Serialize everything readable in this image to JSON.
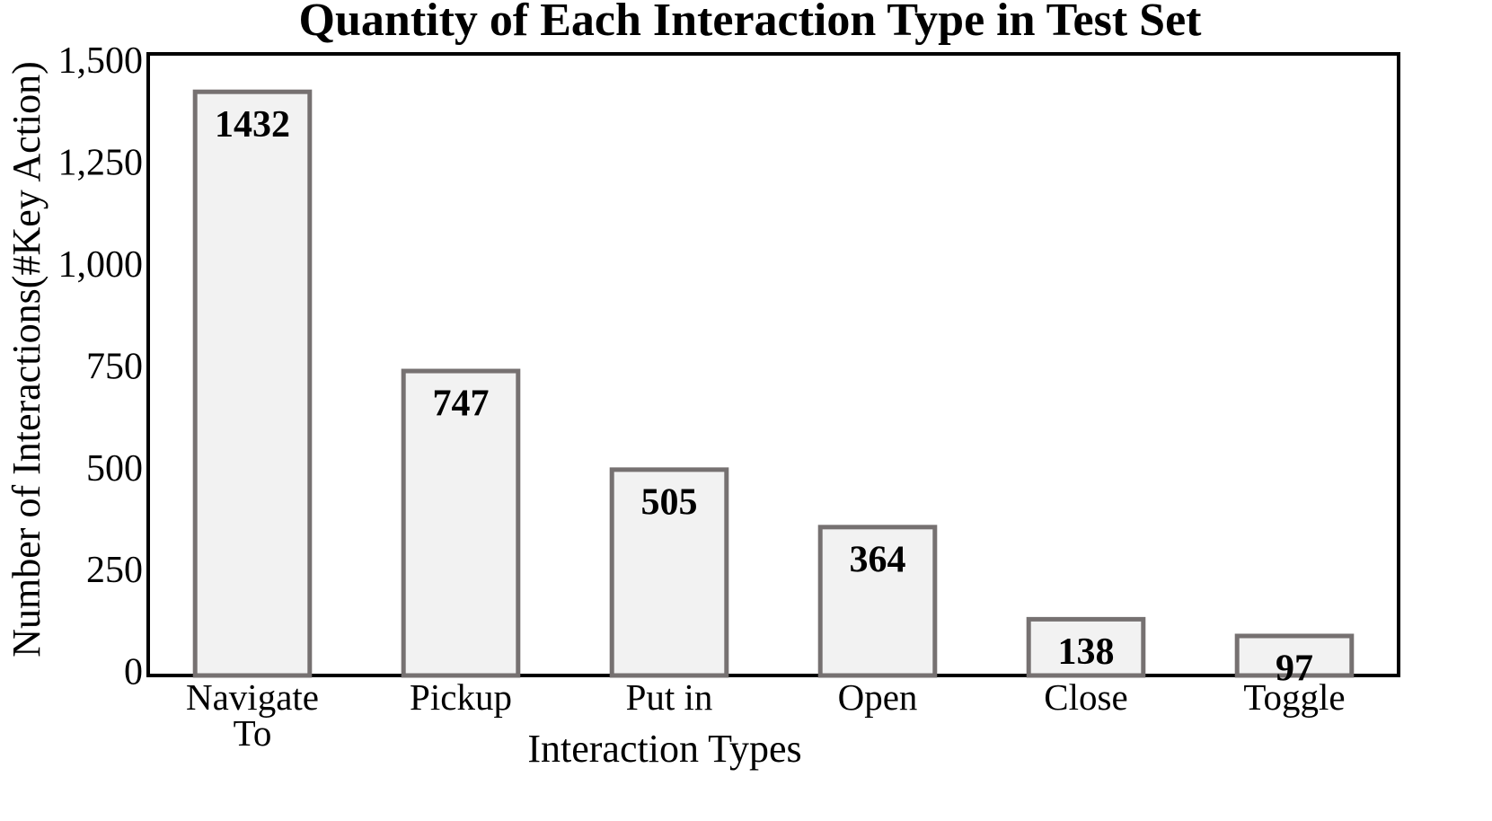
{
  "chart_data": {
    "type": "bar",
    "title": "Quantity of Each Interaction Type in Test Set",
    "x_label": "Interaction Types",
    "y_label": "Number of Interactions(#Key Action)",
    "categories": [
      "Navigate To",
      "Pickup",
      "Put in",
      "Open",
      "Close",
      "Toggle"
    ],
    "values": [
      1432,
      747,
      505,
      364,
      138,
      97
    ],
    "color": "#f2f2f2",
    "edge_color": "#767171",
    "ylim": [
      0,
      1525
    ],
    "yticks": [
      0,
      250,
      500,
      750,
      {
        "value": 1000,
        "label": "1,000"
      },
      {
        "value": 1250,
        "label": "1,250"
      },
      {
        "value": 1500,
        "label": "1,500"
      }
    ],
    "grid": false
  }
}
